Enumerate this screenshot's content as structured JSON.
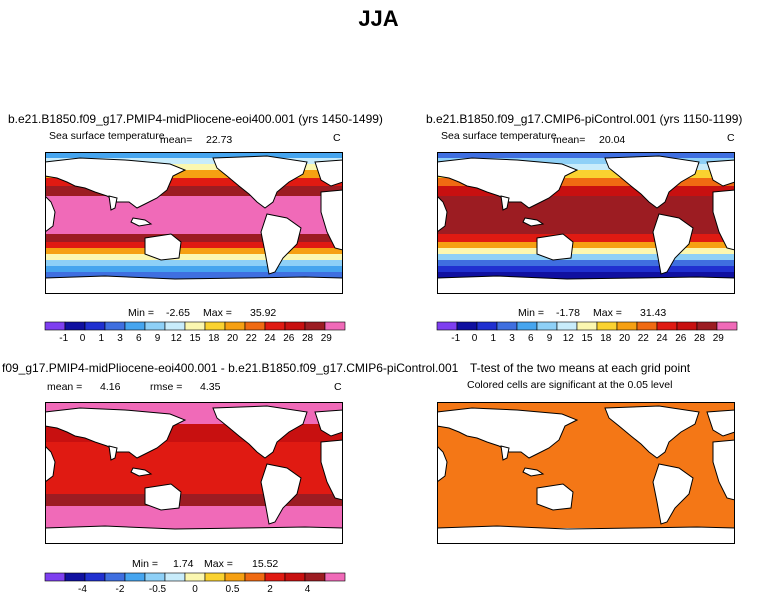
{
  "page": {
    "title": "JJA"
  },
  "palette": [
    "#7e3ff0",
    "#1010a0",
    "#2030d0",
    "#3f6fe0",
    "#46a5ef",
    "#8ed0f7",
    "#c8ecfb",
    "#fbf7b0",
    "#fad230",
    "#f6a012",
    "#f06a12",
    "#e01a12",
    "#c81010",
    "#9c1c22",
    "#f06ab8"
  ],
  "colors": {
    "t_test_significant": "#f47716",
    "land": "#ffffff",
    "coastline": "#000000"
  },
  "chart_data": [
    {
      "type": "heatmap",
      "name": "pliocene",
      "title": "b.e21.B1850.f09_g17.PMIP4-midPliocene-eoi400.001 (yrs 1450-1499)",
      "subtitle_left": "Sea surface temperature",
      "unit": "C",
      "mean_label": "mean=",
      "mean": "22.73",
      "min_label": "Min =",
      "min": "-2.65",
      "max_label": "Max =",
      "max": "35.92",
      "colorbar_ticks": [
        "-1",
        "0",
        "1",
        "3",
        "6",
        "9",
        "12",
        "15",
        "18",
        "20",
        "22",
        "24",
        "26",
        "28",
        "29"
      ]
    },
    {
      "type": "heatmap",
      "name": "picontrol",
      "title": "b.e21.B1850.f09_g17.CMIP6-piControl.001 (yrs 1150-1199)",
      "subtitle_left": "Sea surface temperature",
      "unit": "C",
      "mean_label": "mean=",
      "mean": "20.04",
      "min_label": "Min =",
      "min": "-1.78",
      "max_label": "Max =",
      "max": "31.43",
      "colorbar_ticks": [
        "-1",
        "0",
        "1",
        "3",
        "6",
        "9",
        "12",
        "15",
        "18",
        "20",
        "22",
        "24",
        "26",
        "28",
        "29"
      ]
    },
    {
      "type": "heatmap",
      "name": "difference",
      "title": "f09_g17.PMIP4-midPliocene-eoi400.001 - b.e21.B1850.f09_g17.CMIP6-piControl.001",
      "mean_label": "mean =",
      "mean": "4.16",
      "rmse_label": "rmse =",
      "rmse": "4.35",
      "unit": "C",
      "min_label": "Min =",
      "min": "1.74",
      "max_label": "Max =",
      "max": "15.52",
      "colorbar_ticks": [
        "-4",
        "-2",
        "-0.5",
        "0",
        "0.5",
        "2",
        "4"
      ]
    },
    {
      "type": "heatmap",
      "name": "ttest",
      "title": "T-test of the two means at each grid point",
      "subtitle": "Colored cells are significant at the 0.05 level"
    }
  ]
}
